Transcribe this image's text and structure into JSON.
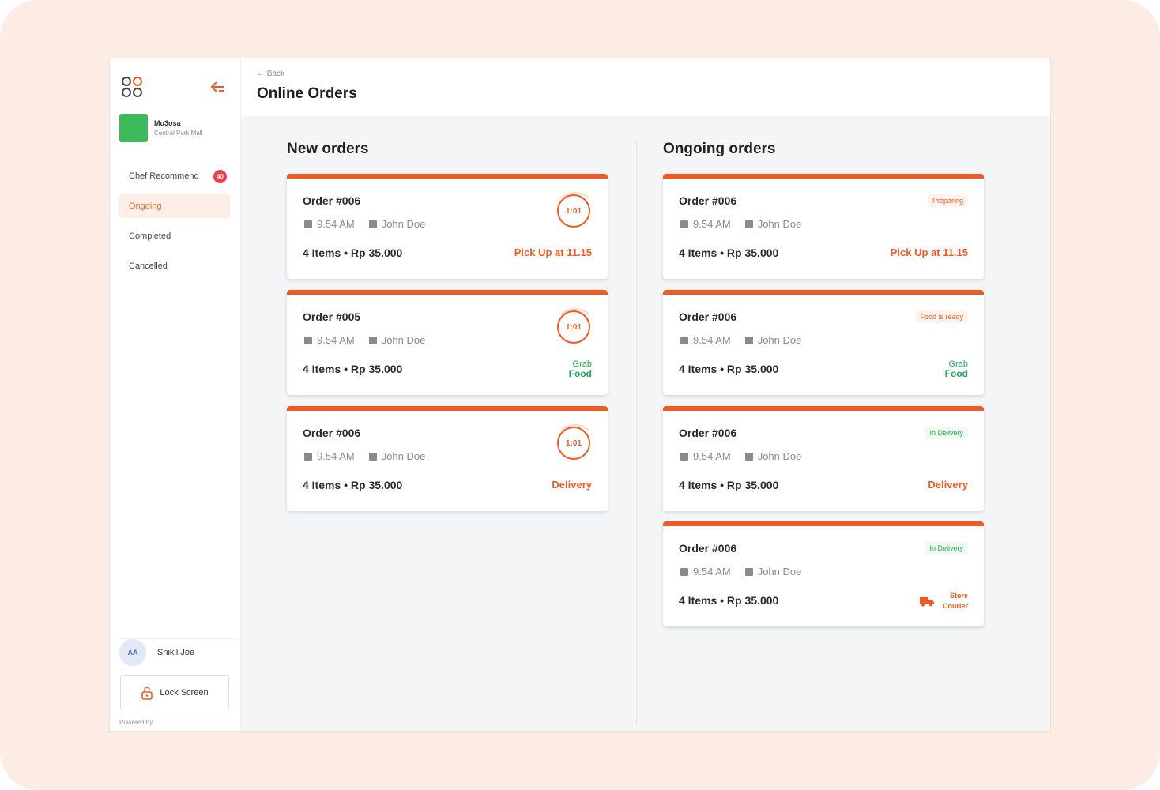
{
  "header": {
    "back": "← Back",
    "title": "Online Orders"
  },
  "store": {
    "name": "Mo3osa",
    "location": "Central Park Mall"
  },
  "nav": [
    {
      "label": "Chef Recommend",
      "badge": "40"
    },
    {
      "label": "Ongoing"
    },
    {
      "label": "Completed"
    },
    {
      "label": "Cancelled"
    }
  ],
  "user": {
    "initials": "AA",
    "name": "Snikil Joe"
  },
  "lock": {
    "label": "Lock Screen"
  },
  "powered": "Powered by",
  "columns": {
    "new": "New orders",
    "ongoing": "Ongoing orders"
  },
  "new_orders": [
    {
      "order": "Order #006",
      "time": "9.54 AM",
      "customer": "John Doe",
      "summary": "4 Items • Rp 35.000",
      "timer": "1:01",
      "tag": "Pick Up at 11.15"
    },
    {
      "order": "Order #005",
      "time": "9.54 AM",
      "customer": "John Doe",
      "summary": "4 Items • Rp 35.000",
      "timer": "1:01",
      "grab_top": "Grab",
      "grab_bottom": "Food"
    },
    {
      "order": "Order #006",
      "time": "9.54 AM",
      "customer": "John Doe",
      "summary": "4 Items • Rp 35.000",
      "timer": "1:01",
      "tag": "Delivery"
    }
  ],
  "ongoing_orders": [
    {
      "order": "Order #006",
      "time": "9.54 AM",
      "customer": "John Doe",
      "summary": "4 Items • Rp 35.000",
      "status": "Preparing",
      "tag": "Pick Up at 11.15"
    },
    {
      "order": "Order #006",
      "time": "9.54 AM",
      "customer": "John Doe",
      "summary": "4 Items • Rp 35.000",
      "status": "Food is ready",
      "grab_top": "Grab",
      "grab_bottom": "Food"
    },
    {
      "order": "Order #006",
      "time": "9.54 AM",
      "customer": "John Doe",
      "summary": "4 Items • Rp 35.000",
      "status": "In Delivery",
      "tag": "Delivery"
    },
    {
      "order": "Order #006",
      "time": "9.54 AM",
      "customer": "John Doe",
      "summary": "4 Items • Rp 35.000",
      "status": "In Delivery",
      "courier_top": "Store",
      "courier_bottom": "Courier"
    }
  ],
  "colors": {
    "accent": "#f15a22",
    "green": "#1fa653",
    "store": "#3dbb5a"
  }
}
